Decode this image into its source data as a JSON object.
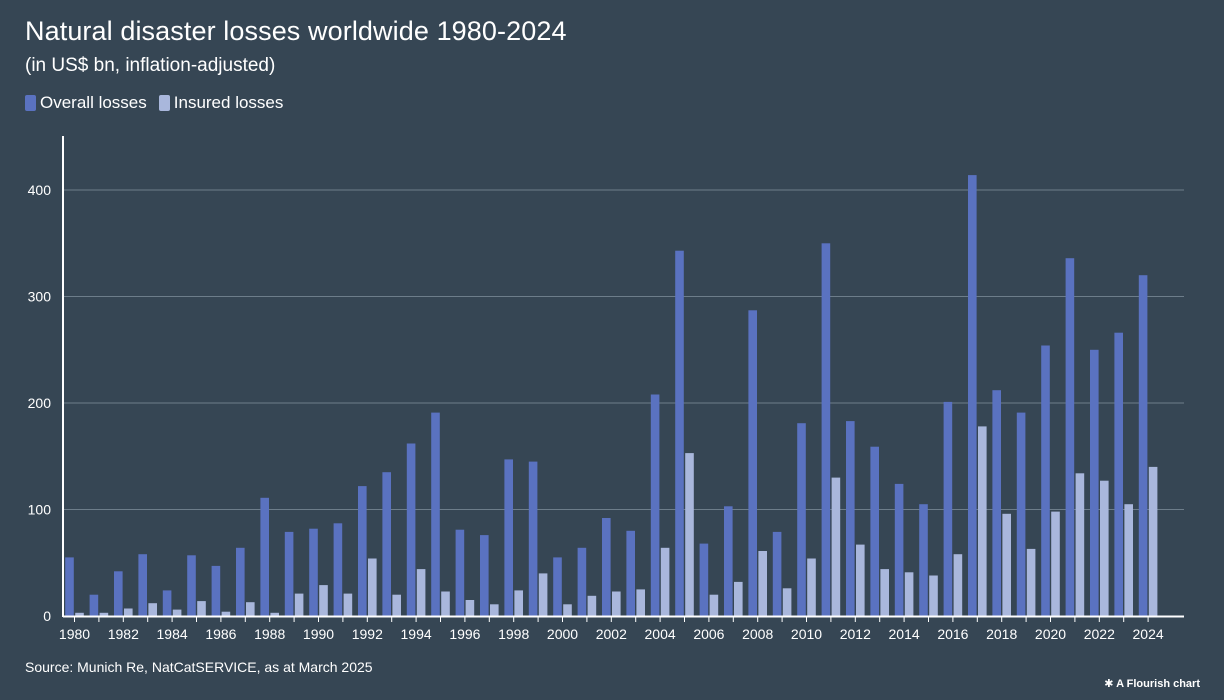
{
  "title": "Natural disaster losses worldwide 1980-2024",
  "subtitle": "(in US$ bn, inflation-adjusted)",
  "source": "Source: Munich Re, NatCatSERVICE, as at March 2025",
  "credit": "A Flourish chart",
  "colors": {
    "background": "#364654",
    "overall": "#5a72c0",
    "insured": "#a9b7dc"
  },
  "chart_data": {
    "type": "bar",
    "title": "Natural disaster losses worldwide 1980-2024",
    "subtitle": "(in US$ bn, inflation-adjusted)",
    "xlabel": "",
    "ylabel": "",
    "ylim": [
      0,
      450
    ],
    "yticks": [
      0,
      100,
      200,
      300,
      400
    ],
    "grid": true,
    "legend_position": "top-left",
    "categories": [
      "1980",
      "1981",
      "1982",
      "1983",
      "1984",
      "1985",
      "1986",
      "1987",
      "1988",
      "1989",
      "1990",
      "1991",
      "1992",
      "1993",
      "1994",
      "1995",
      "1996",
      "1997",
      "1998",
      "1999",
      "2000",
      "2001",
      "2002",
      "2003",
      "2004",
      "2005",
      "2006",
      "2007",
      "2008",
      "2009",
      "2010",
      "2011",
      "2012",
      "2013",
      "2014",
      "2015",
      "2016",
      "2017",
      "2018",
      "2019",
      "2020",
      "2021",
      "2022",
      "2023",
      "2024"
    ],
    "xtick_labels": [
      "1980",
      "1982",
      "1984",
      "1986",
      "1988",
      "1990",
      "1992",
      "1994",
      "1996",
      "1998",
      "2000",
      "2002",
      "2004",
      "2006",
      "2008",
      "2010",
      "2012",
      "2014",
      "2016",
      "2018",
      "2020",
      "2022",
      "2024"
    ],
    "series": [
      {
        "name": "Overall losses",
        "color": "#5a72c0",
        "values": [
          55,
          20,
          42,
          58,
          24,
          57,
          47,
          64,
          111,
          79,
          82,
          87,
          122,
          135,
          162,
          191,
          81,
          76,
          147,
          145,
          55,
          64,
          92,
          80,
          208,
          343,
          68,
          103,
          287,
          79,
          181,
          350,
          183,
          159,
          124,
          105,
          201,
          414,
          212,
          191,
          254,
          336,
          250,
          266,
          320
        ]
      },
      {
        "name": "Insured losses",
        "color": "#a9b7dc",
        "values": [
          3,
          3,
          7,
          12,
          6,
          14,
          4,
          13,
          3,
          21,
          29,
          21,
          54,
          20,
          44,
          23,
          15,
          11,
          24,
          40,
          11,
          19,
          23,
          25,
          64,
          153,
          20,
          32,
          61,
          26,
          54,
          130,
          67,
          44,
          41,
          38,
          58,
          178,
          96,
          63,
          98,
          134,
          127,
          105,
          140
        ]
      }
    ]
  }
}
